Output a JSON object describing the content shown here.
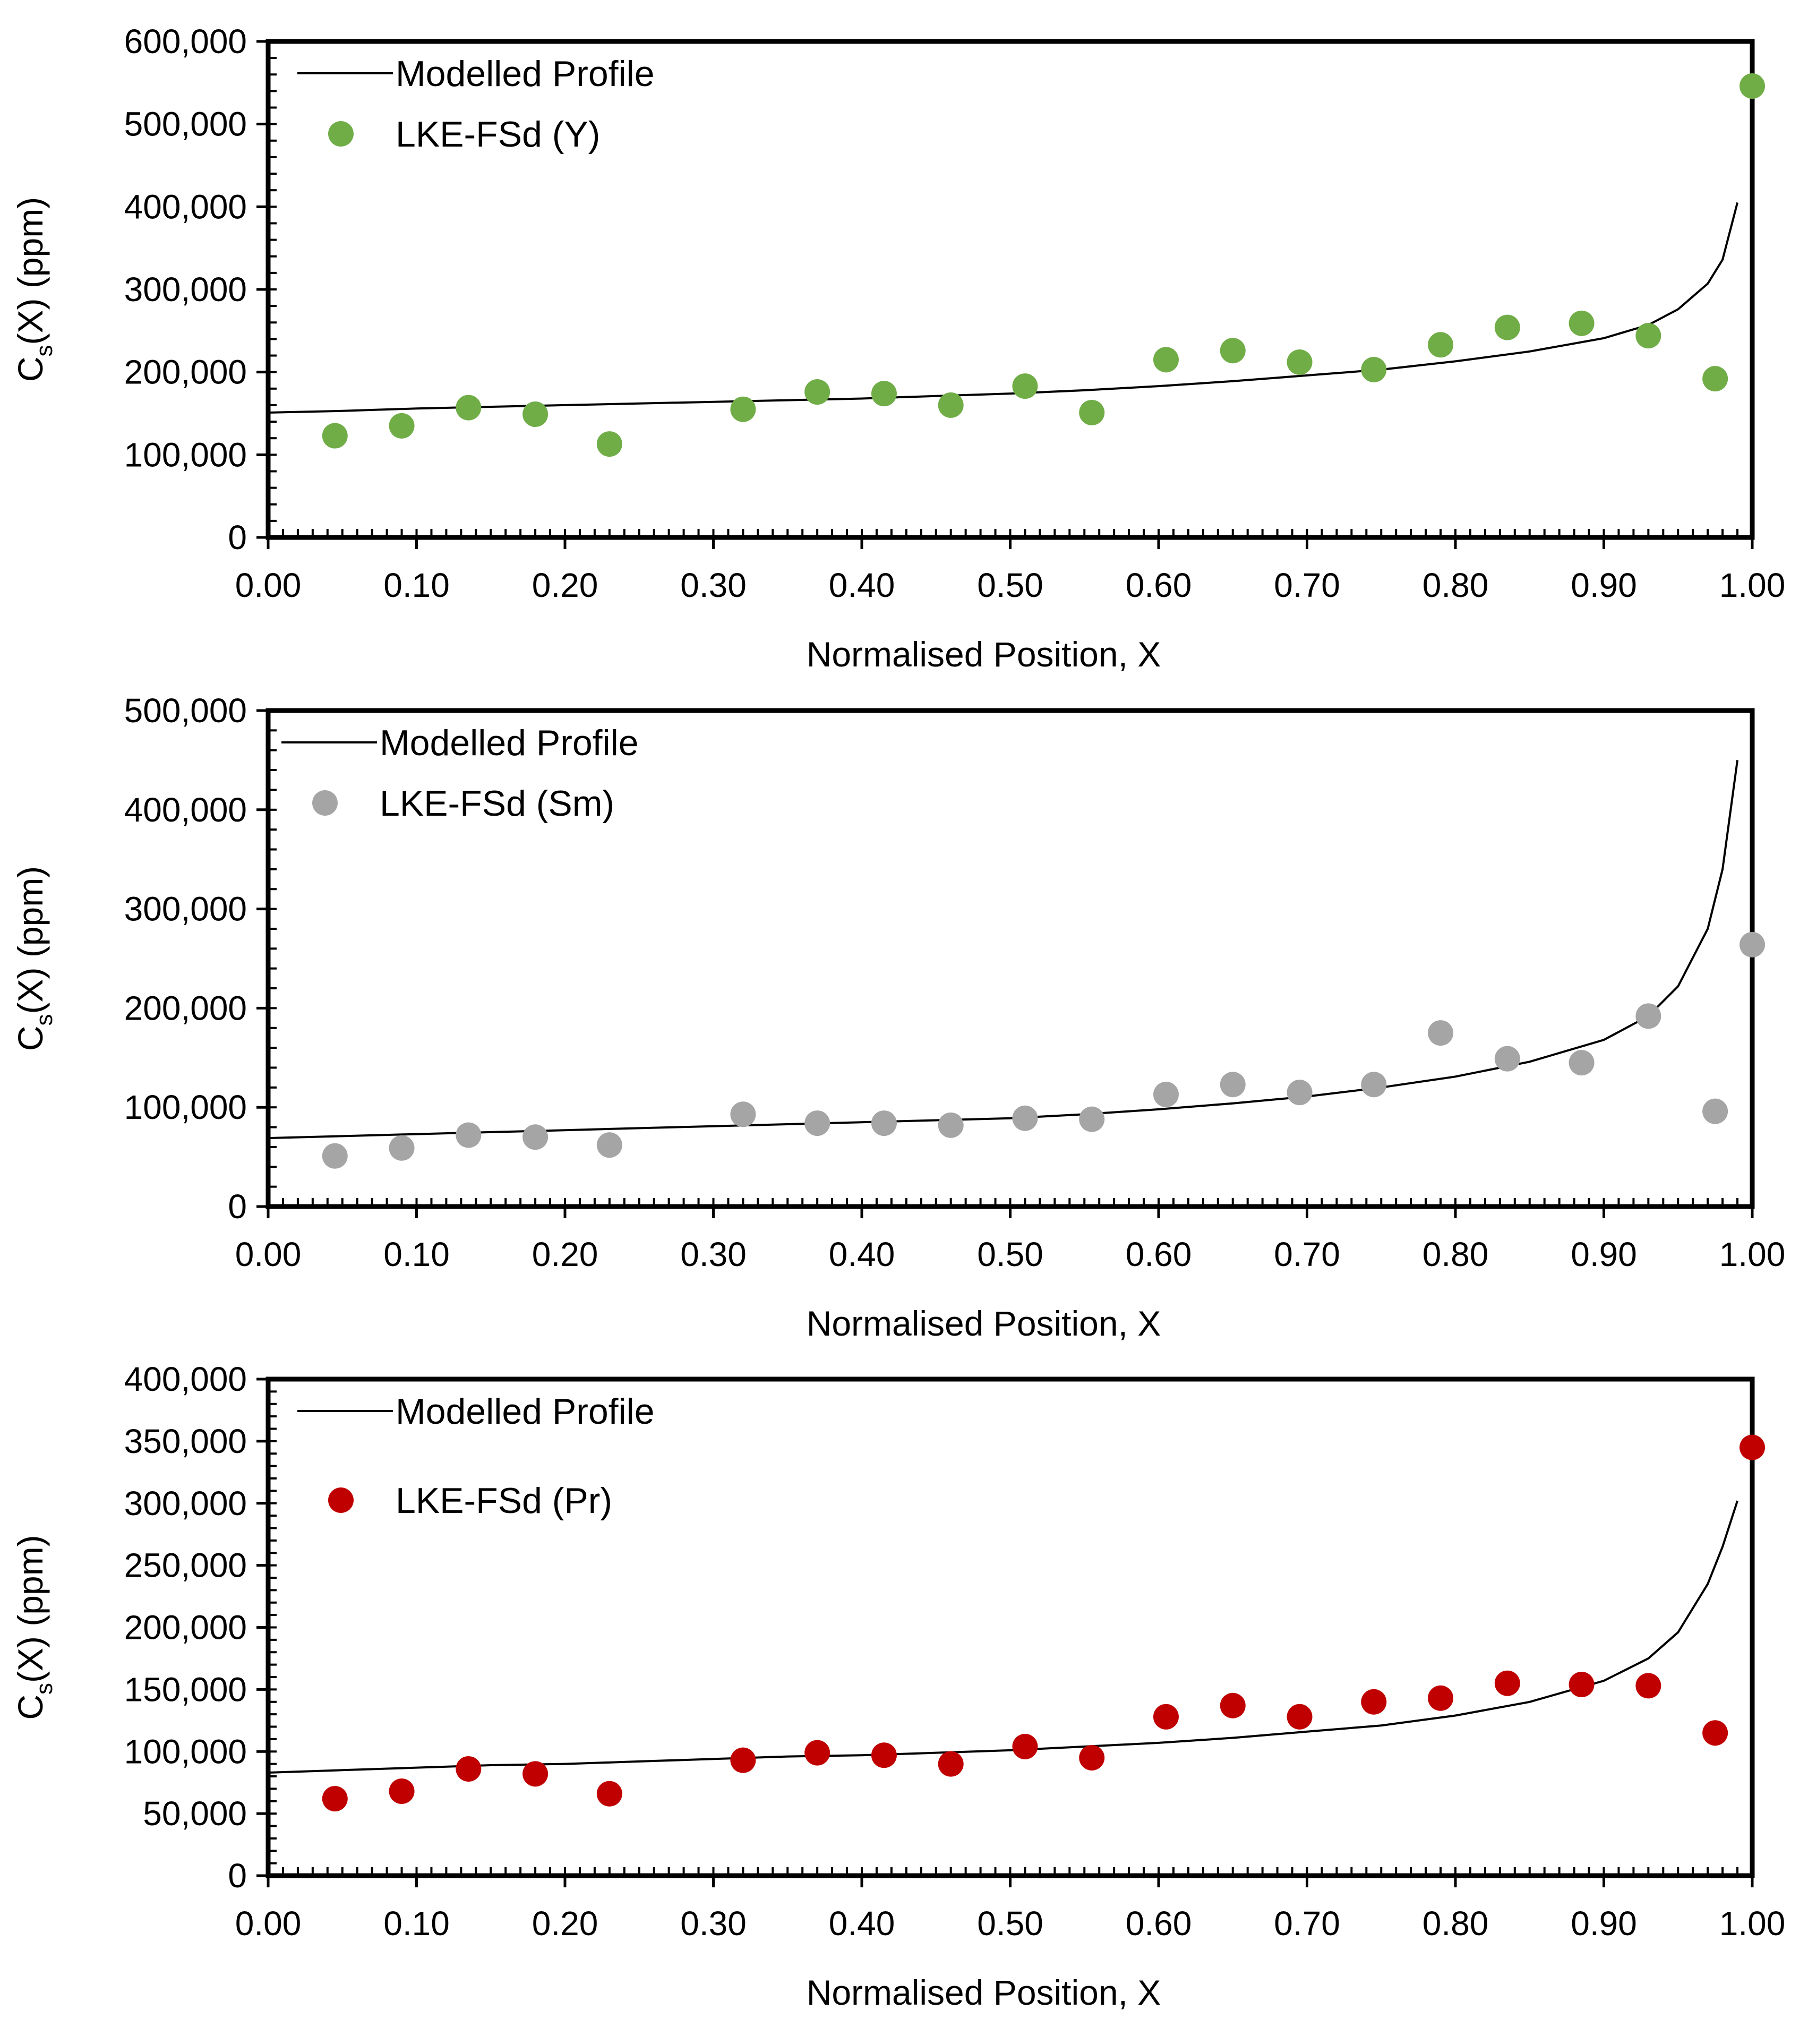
{
  "chart_data": [
    {
      "type": "scatter",
      "xlabel": "Normalised Position, X",
      "ylabel": "C",
      "ylabel_sub": "s",
      "ylabel_rest": "(X) (ppm)",
      "xlim": [
        0,
        1
      ],
      "ylim": [
        0,
        600000
      ],
      "x_ticks": [
        "0.00",
        "0.10",
        "0.20",
        "0.30",
        "0.40",
        "0.50",
        "0.60",
        "0.70",
        "0.80",
        "0.90",
        "1.00"
      ],
      "y_ticks": [
        "0",
        "100,000",
        "200,000",
        "300,000",
        "400,000",
        "500,000",
        "600,000"
      ],
      "y_tick_values": [
        0,
        100000,
        200000,
        300000,
        400000,
        500000,
        600000
      ],
      "legend": {
        "line": "Modelled Profile",
        "points": "LKE-FSd (Y)",
        "position": "top-left"
      },
      "color": "#70AD47",
      "series": [
        {
          "name": "LKE-FSd (Y)",
          "x": [
            0.045,
            0.09,
            0.135,
            0.18,
            0.23,
            0.32,
            0.37,
            0.415,
            0.46,
            0.51,
            0.555,
            0.605,
            0.65,
            0.695,
            0.745,
            0.79,
            0.835,
            0.885,
            0.93,
            0.975,
            1.0
          ],
          "y": [
            123000,
            135000,
            157000,
            149000,
            113000,
            155000,
            176000,
            174000,
            160000,
            183000,
            151000,
            215000,
            226000,
            212000,
            203000,
            233000,
            254000,
            259000,
            244000,
            192000,
            546000
          ]
        },
        {
          "name": "Modelled Profile",
          "x": [
            0,
            0.05,
            0.1,
            0.15,
            0.2,
            0.25,
            0.3,
            0.35,
            0.4,
            0.45,
            0.5,
            0.55,
            0.6,
            0.65,
            0.7,
            0.75,
            0.8,
            0.85,
            0.9,
            0.93,
            0.95,
            0.97,
            0.98,
            0.99
          ],
          "y": [
            151000,
            153000,
            156000,
            158000,
            160000,
            162000,
            164000,
            166000,
            168000,
            171000,
            174000,
            178000,
            183000,
            189000,
            196000,
            203000,
            213000,
            225000,
            241000,
            257000,
            276000,
            307000,
            336000,
            405000
          ]
        }
      ]
    },
    {
      "type": "scatter",
      "xlabel": "Normalised Position, X",
      "ylabel": "C",
      "ylabel_sub": "s",
      "ylabel_rest": "(X) (ppm)",
      "xlim": [
        0,
        1
      ],
      "ylim": [
        0,
        500000
      ],
      "x_ticks": [
        "0.00",
        "0.10",
        "0.20",
        "0.30",
        "0.40",
        "0.50",
        "0.60",
        "0.70",
        "0.80",
        "0.90",
        "1.00"
      ],
      "y_ticks": [
        "0",
        "100,000",
        "200,000",
        "300,000",
        "400,000",
        "500,000"
      ],
      "y_tick_values": [
        0,
        100000,
        200000,
        300000,
        400000,
        500000
      ],
      "legend": {
        "line": "Modelled Profile",
        "points": "LKE-FSd (Sm)",
        "position": "top-left"
      },
      "color": "#A5A5A5",
      "series": [
        {
          "name": "LKE-FSd (Sm)",
          "x": [
            0.045,
            0.09,
            0.135,
            0.18,
            0.23,
            0.32,
            0.37,
            0.415,
            0.46,
            0.51,
            0.555,
            0.605,
            0.65,
            0.695,
            0.745,
            0.79,
            0.835,
            0.885,
            0.93,
            0.975,
            1.0
          ],
          "y": [
            51000,
            59000,
            72000,
            70000,
            62000,
            93000,
            84000,
            84000,
            82000,
            89000,
            88000,
            113000,
            123000,
            115000,
            123000,
            175000,
            149000,
            145000,
            192000,
            96000,
            264000
          ]
        },
        {
          "name": "Modelled Profile",
          "x": [
            0,
            0.05,
            0.1,
            0.15,
            0.2,
            0.25,
            0.3,
            0.35,
            0.4,
            0.45,
            0.5,
            0.55,
            0.6,
            0.65,
            0.7,
            0.75,
            0.8,
            0.85,
            0.9,
            0.93,
            0.95,
            0.97,
            0.98,
            0.99
          ],
          "y": [
            69000,
            71000,
            73000,
            75000,
            77000,
            79000,
            81000,
            83000,
            85000,
            87000,
            89000,
            93000,
            98000,
            104000,
            111000,
            120000,
            131000,
            146000,
            168000,
            192000,
            222000,
            280000,
            340000,
            450000
          ]
        }
      ]
    },
    {
      "type": "scatter",
      "xlabel": "Normalised Position, X",
      "ylabel": "C",
      "ylabel_sub": "s",
      "ylabel_rest": "(X) (ppm)",
      "xlim": [
        0,
        1
      ],
      "ylim": [
        0,
        400000
      ],
      "x_ticks": [
        "0.00",
        "0.10",
        "0.20",
        "0.30",
        "0.40",
        "0.50",
        "0.60",
        "0.70",
        "0.80",
        "0.90",
        "1.00"
      ],
      "y_ticks": [
        "0",
        "50,000",
        "100,000",
        "150,000",
        "200,000",
        "250,000",
        "300,000",
        "350,000",
        "400,000"
      ],
      "y_tick_values": [
        0,
        50000,
        100000,
        150000,
        200000,
        250000,
        300000,
        350000,
        400000
      ],
      "legend": {
        "line": "Modelled Profile",
        "points": "LKE-FSd (Pr)",
        "position": "top-left"
      },
      "color": "#C00000",
      "series": [
        {
          "name": "LKE-FSd (Pr)",
          "x": [
            0.045,
            0.09,
            0.135,
            0.18,
            0.23,
            0.32,
            0.37,
            0.415,
            0.46,
            0.51,
            0.555,
            0.605,
            0.65,
            0.695,
            0.745,
            0.79,
            0.835,
            0.885,
            0.93,
            0.975,
            1.0
          ],
          "y": [
            62000,
            68000,
            86000,
            82000,
            66000,
            93000,
            99000,
            97000,
            90000,
            104000,
            95000,
            128000,
            137000,
            128000,
            140000,
            143000,
            155000,
            154000,
            153000,
            115000,
            345000
          ]
        },
        {
          "name": "Modelled Profile",
          "x": [
            0,
            0.05,
            0.1,
            0.15,
            0.2,
            0.25,
            0.3,
            0.35,
            0.4,
            0.45,
            0.5,
            0.55,
            0.6,
            0.65,
            0.7,
            0.75,
            0.8,
            0.85,
            0.9,
            0.93,
            0.95,
            0.97,
            0.98,
            0.99
          ],
          "y": [
            83000,
            85000,
            87000,
            89000,
            90000,
            92000,
            94000,
            96000,
            97000,
            99000,
            101000,
            104000,
            107000,
            111000,
            116000,
            121000,
            129000,
            140000,
            157000,
            175000,
            196000,
            235000,
            265000,
            302000
          ]
        }
      ]
    }
  ]
}
